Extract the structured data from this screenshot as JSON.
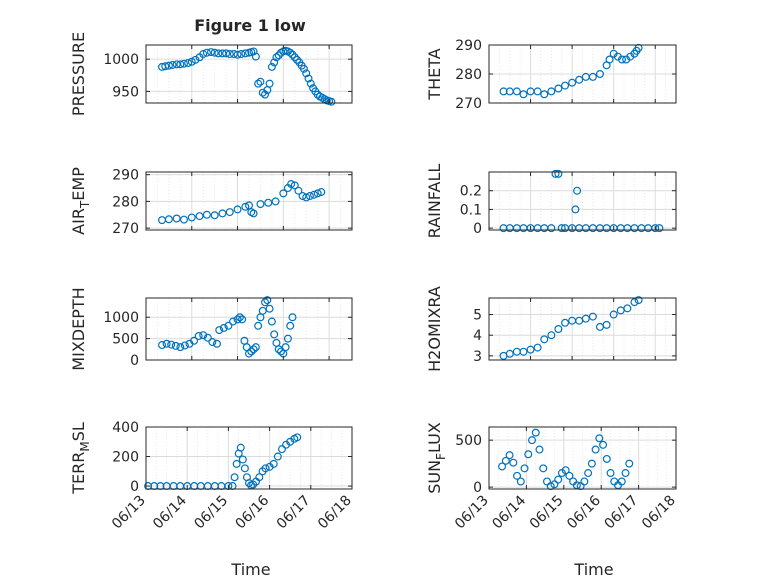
{
  "figure": {
    "title": "Figure 1 low",
    "x_axis_label": "Time",
    "marker_color": "#0072BD",
    "marker": "open-circle"
  },
  "chart_data": [
    {
      "type": "scatter",
      "ylabel": "PRESSURE",
      "ylim": [
        932,
        1022
      ],
      "yticks": [
        950,
        1000
      ],
      "xlim": [
        "06/13",
        "06/17 12:00"
      ],
      "xticks": [],
      "grid": "on",
      "points": [
        [
          13.35,
          988
        ],
        [
          13.42,
          989
        ],
        [
          13.5,
          990
        ],
        [
          13.58,
          991
        ],
        [
          13.67,
          992
        ],
        [
          13.75,
          992
        ],
        [
          13.83,
          993
        ],
        [
          13.92,
          994
        ],
        [
          14.0,
          996
        ],
        [
          14.08,
          999
        ],
        [
          14.17,
          1003
        ],
        [
          14.25,
          1008
        ],
        [
          14.33,
          1010
        ],
        [
          14.42,
          1011
        ],
        [
          14.5,
          1010
        ],
        [
          14.58,
          1009
        ],
        [
          14.67,
          1009
        ],
        [
          14.75,
          1009
        ],
        [
          14.83,
          1008
        ],
        [
          14.92,
          1008
        ],
        [
          15.0,
          1007
        ],
        [
          15.08,
          1008
        ],
        [
          15.17,
          1009
        ],
        [
          15.25,
          1010
        ],
        [
          15.3,
          1011
        ],
        [
          15.35,
          1012
        ],
        [
          15.4,
          1004
        ],
        [
          15.45,
          962
        ],
        [
          15.5,
          965
        ],
        [
          15.55,
          948
        ],
        [
          15.6,
          945
        ],
        [
          15.65,
          952
        ],
        [
          15.7,
          962
        ],
        [
          15.75,
          988
        ],
        [
          15.8,
          995
        ],
        [
          15.85,
          1003
        ],
        [
          15.9,
          1006
        ],
        [
          15.95,
          1010
        ],
        [
          16.0,
          1012
        ],
        [
          16.05,
          1013
        ],
        [
          16.1,
          1012
        ],
        [
          16.15,
          1010
        ],
        [
          16.2,
          1007
        ],
        [
          16.25,
          1003
        ],
        [
          16.3,
          999
        ],
        [
          16.35,
          995
        ],
        [
          16.4,
          990
        ],
        [
          16.45,
          985
        ],
        [
          16.5,
          978
        ],
        [
          16.55,
          970
        ],
        [
          16.6,
          962
        ],
        [
          16.65,
          955
        ],
        [
          16.7,
          950
        ],
        [
          16.75,
          945
        ],
        [
          16.8,
          942
        ],
        [
          16.85,
          940
        ],
        [
          16.9,
          938
        ],
        [
          16.95,
          936
        ],
        [
          17.0,
          935
        ],
        [
          17.05,
          934
        ]
      ]
    },
    {
      "type": "scatter",
      "ylabel": "THETA",
      "ylim": [
        270,
        290
      ],
      "yticks": [
        270,
        280,
        290
      ],
      "xlim": [
        "06/13",
        "06/17 12:00"
      ],
      "xticks": [],
      "grid": "on",
      "points": [
        [
          13.35,
          274
        ],
        [
          13.5,
          274
        ],
        [
          13.67,
          274
        ],
        [
          13.83,
          273
        ],
        [
          14.0,
          274
        ],
        [
          14.17,
          274
        ],
        [
          14.33,
          273
        ],
        [
          14.5,
          274
        ],
        [
          14.67,
          275
        ],
        [
          14.83,
          276
        ],
        [
          15.0,
          277
        ],
        [
          15.17,
          278
        ],
        [
          15.33,
          279
        ],
        [
          15.5,
          279
        ],
        [
          15.67,
          280
        ],
        [
          15.83,
          283
        ],
        [
          15.9,
          285
        ],
        [
          16.0,
          287
        ],
        [
          16.1,
          286
        ],
        [
          16.2,
          285
        ],
        [
          16.3,
          285
        ],
        [
          16.4,
          286
        ],
        [
          16.5,
          287
        ],
        [
          16.55,
          288
        ],
        [
          16.6,
          289
        ]
      ]
    },
    {
      "type": "scatter",
      "ylabel": "AIR_TEMP",
      "ylim": [
        269.3,
        291
      ],
      "yticks": [
        270,
        280,
        290
      ],
      "xlim": [
        "06/13",
        "06/17 12:00"
      ],
      "xticks": [],
      "grid": "on",
      "points": [
        [
          13.35,
          273
        ],
        [
          13.5,
          273.3
        ],
        [
          13.67,
          273.6
        ],
        [
          13.83,
          273.2
        ],
        [
          14.0,
          274
        ],
        [
          14.17,
          274.5
        ],
        [
          14.33,
          275
        ],
        [
          14.5,
          274.8
        ],
        [
          14.67,
          275.5
        ],
        [
          14.83,
          276
        ],
        [
          15.0,
          277
        ],
        [
          15.17,
          278
        ],
        [
          15.25,
          278.5
        ],
        [
          15.3,
          276
        ],
        [
          15.35,
          275.5
        ],
        [
          15.5,
          279
        ],
        [
          15.67,
          279.5
        ],
        [
          15.83,
          280
        ],
        [
          16.0,
          283
        ],
        [
          16.1,
          285
        ],
        [
          16.17,
          286.5
        ],
        [
          16.25,
          286
        ],
        [
          16.33,
          284
        ],
        [
          16.42,
          282
        ],
        [
          16.5,
          281.5
        ],
        [
          16.58,
          282
        ],
        [
          16.67,
          282.5
        ],
        [
          16.75,
          283
        ],
        [
          16.83,
          283.5
        ]
      ]
    },
    {
      "type": "scatter",
      "ylabel": "RAINFALL",
      "ylim": [
        -0.01,
        0.3
      ],
      "yticks": [
        0,
        0.1,
        0.2
      ],
      "xlim": [
        "06/13",
        "06/17 12:00"
      ],
      "xticks": [],
      "grid": "on",
      "points": [
        [
          13.35,
          0
        ],
        [
          13.5,
          0
        ],
        [
          13.67,
          0
        ],
        [
          13.83,
          0
        ],
        [
          14.0,
          0
        ],
        [
          14.17,
          0
        ],
        [
          14.33,
          0
        ],
        [
          14.5,
          0
        ],
        [
          14.6,
          0.29
        ],
        [
          14.67,
          0.29
        ],
        [
          14.75,
          0
        ],
        [
          14.83,
          0
        ],
        [
          15.0,
          0
        ],
        [
          15.08,
          0.1
        ],
        [
          15.12,
          0.2
        ],
        [
          15.17,
          0
        ],
        [
          15.33,
          0
        ],
        [
          15.5,
          0
        ],
        [
          15.67,
          0
        ],
        [
          15.83,
          0
        ],
        [
          16.0,
          0
        ],
        [
          16.17,
          0
        ],
        [
          16.33,
          0
        ],
        [
          16.5,
          0
        ],
        [
          16.67,
          0
        ],
        [
          16.83,
          0
        ],
        [
          17.0,
          0
        ],
        [
          17.1,
          0
        ]
      ]
    },
    {
      "type": "scatter",
      "ylabel": "MIXDEPTH",
      "ylim": [
        0,
        1450
      ],
      "yticks": [
        0,
        500,
        1000
      ],
      "xlim": [
        "06/13",
        "06/17 12:00"
      ],
      "xticks": [],
      "grid": "on",
      "points": [
        [
          13.35,
          350
        ],
        [
          13.45,
          380
        ],
        [
          13.55,
          360
        ],
        [
          13.65,
          330
        ],
        [
          13.75,
          300
        ],
        [
          13.85,
          340
        ],
        [
          13.95,
          380
        ],
        [
          14.05,
          450
        ],
        [
          14.15,
          560
        ],
        [
          14.25,
          580
        ],
        [
          14.35,
          520
        ],
        [
          14.45,
          420
        ],
        [
          14.55,
          380
        ],
        [
          14.6,
          700
        ],
        [
          14.7,
          750
        ],
        [
          14.8,
          800
        ],
        [
          14.9,
          900
        ],
        [
          15.0,
          950
        ],
        [
          15.05,
          1000
        ],
        [
          15.1,
          950
        ],
        [
          15.15,
          450
        ],
        [
          15.2,
          300
        ],
        [
          15.25,
          150
        ],
        [
          15.3,
          200
        ],
        [
          15.35,
          250
        ],
        [
          15.4,
          300
        ],
        [
          15.45,
          800
        ],
        [
          15.5,
          1000
        ],
        [
          15.55,
          1150
        ],
        [
          15.6,
          1350
        ],
        [
          15.65,
          1400
        ],
        [
          15.7,
          1200
        ],
        [
          15.75,
          900
        ],
        [
          15.8,
          600
        ],
        [
          15.85,
          400
        ],
        [
          15.9,
          250
        ],
        [
          15.95,
          200
        ],
        [
          16.0,
          150
        ],
        [
          16.05,
          300
        ],
        [
          16.1,
          500
        ],
        [
          16.15,
          800
        ],
        [
          16.2,
          1000
        ]
      ]
    },
    {
      "type": "scatter",
      "ylabel": "H2OMIXRA",
      "ylim": [
        2.8,
        5.8
      ],
      "yticks": [
        3,
        4,
        5
      ],
      "xlim": [
        "06/13",
        "06/17 12:00"
      ],
      "xticks": [],
      "grid": "on",
      "points": [
        [
          13.35,
          3.0
        ],
        [
          13.5,
          3.1
        ],
        [
          13.67,
          3.2
        ],
        [
          13.83,
          3.2
        ],
        [
          14.0,
          3.3
        ],
        [
          14.17,
          3.4
        ],
        [
          14.33,
          3.8
        ],
        [
          14.5,
          4.0
        ],
        [
          14.67,
          4.3
        ],
        [
          14.83,
          4.6
        ],
        [
          15.0,
          4.7
        ],
        [
          15.17,
          4.7
        ],
        [
          15.33,
          4.8
        ],
        [
          15.5,
          4.9
        ],
        [
          15.67,
          4.4
        ],
        [
          15.83,
          4.5
        ],
        [
          16.0,
          5.0
        ],
        [
          16.17,
          5.2
        ],
        [
          16.33,
          5.3
        ],
        [
          16.5,
          5.6
        ],
        [
          16.6,
          5.7
        ]
      ]
    },
    {
      "type": "scatter",
      "ylabel": "TERR_MSL",
      "ylim": [
        -20,
        400
      ],
      "yticks": [
        0,
        200,
        400
      ],
      "xlim": [
        "06/13",
        "06/18"
      ],
      "xticks": [
        "06/13",
        "06/14",
        "06/15",
        "06/16",
        "06/17",
        "06/18"
      ],
      "grid": "on",
      "points": [
        [
          13.05,
          0
        ],
        [
          13.2,
          0
        ],
        [
          13.35,
          0
        ],
        [
          13.5,
          0
        ],
        [
          13.67,
          0
        ],
        [
          13.83,
          0
        ],
        [
          14.0,
          0
        ],
        [
          14.17,
          0
        ],
        [
          14.33,
          0
        ],
        [
          14.5,
          0
        ],
        [
          14.67,
          0
        ],
        [
          14.83,
          0
        ],
        [
          15.0,
          0
        ],
        [
          15.1,
          0
        ],
        [
          15.15,
          60
        ],
        [
          15.2,
          150
        ],
        [
          15.25,
          220
        ],
        [
          15.3,
          260
        ],
        [
          15.35,
          180
        ],
        [
          15.4,
          120
        ],
        [
          15.45,
          60
        ],
        [
          15.5,
          20
        ],
        [
          15.55,
          5
        ],
        [
          15.6,
          10
        ],
        [
          15.67,
          30
        ],
        [
          15.75,
          60
        ],
        [
          15.83,
          100
        ],
        [
          15.9,
          120
        ],
        [
          16.0,
          130
        ],
        [
          16.1,
          150
        ],
        [
          16.2,
          200
        ],
        [
          16.3,
          250
        ],
        [
          16.4,
          280
        ],
        [
          16.5,
          300
        ],
        [
          16.6,
          320
        ],
        [
          16.67,
          330
        ]
      ]
    },
    {
      "type": "scatter",
      "ylabel": "SUN_FLUX",
      "ylim": [
        -20,
        640
      ],
      "yticks": [
        0,
        500
      ],
      "xlim": [
        "06/13",
        "06/18"
      ],
      "xticks": [
        "06/13",
        "06/14",
        "06/15",
        "06/16",
        "06/17",
        "06/18"
      ],
      "grid": "on",
      "points": [
        [
          13.35,
          220
        ],
        [
          13.45,
          280
        ],
        [
          13.55,
          340
        ],
        [
          13.65,
          260
        ],
        [
          13.75,
          120
        ],
        [
          13.85,
          60
        ],
        [
          13.95,
          200
        ],
        [
          14.05,
          350
        ],
        [
          14.15,
          500
        ],
        [
          14.25,
          580
        ],
        [
          14.35,
          400
        ],
        [
          14.45,
          200
        ],
        [
          14.55,
          60
        ],
        [
          14.65,
          10
        ],
        [
          14.75,
          30
        ],
        [
          14.85,
          80
        ],
        [
          14.95,
          150
        ],
        [
          15.05,
          180
        ],
        [
          15.15,
          120
        ],
        [
          15.25,
          60
        ],
        [
          15.35,
          20
        ],
        [
          15.45,
          10
        ],
        [
          15.55,
          60
        ],
        [
          15.65,
          150
        ],
        [
          15.75,
          250
        ],
        [
          15.85,
          400
        ],
        [
          15.95,
          520
        ],
        [
          16.05,
          450
        ],
        [
          16.15,
          300
        ],
        [
          16.25,
          150
        ],
        [
          16.35,
          60
        ],
        [
          16.45,
          20
        ],
        [
          16.55,
          60
        ],
        [
          16.65,
          150
        ],
        [
          16.75,
          250
        ]
      ]
    }
  ]
}
